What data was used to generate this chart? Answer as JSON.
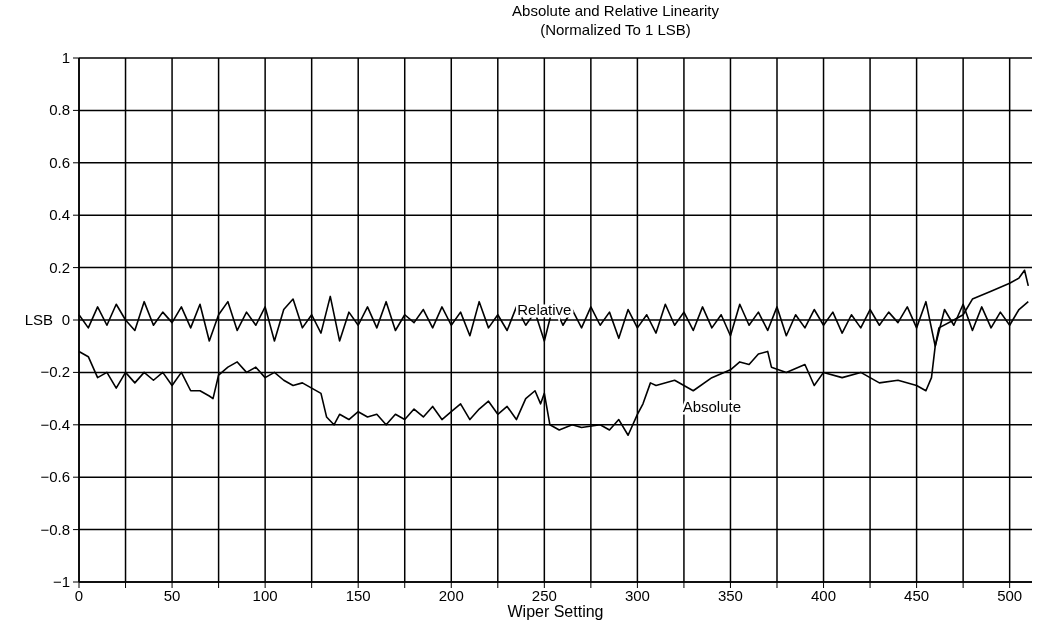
{
  "chart_data": {
    "type": "line",
    "title": "Absolute and Relative Linearity",
    "subtitle": "(Normalized To 1 LSB)",
    "xlabel": "Wiper Setting",
    "ylabel": "LSB",
    "xlim": [
      0,
      512
    ],
    "ylim": [
      -1,
      1
    ],
    "xticks": [
      0,
      {
        "value": 25,
        "label": null
      },
      50,
      {
        "value": 75,
        "label": null
      },
      100,
      {
        "value": 125,
        "label": null
      },
      150,
      {
        "value": 175,
        "label": null
      },
      200,
      {
        "value": 225,
        "label": null
      },
      250,
      {
        "value": 275,
        "label": null
      },
      300,
      {
        "value": 325,
        "label": null
      },
      350,
      {
        "value": 375,
        "label": null
      },
      400,
      {
        "value": 425,
        "label": null
      },
      450,
      {
        "value": 475,
        "label": null
      },
      500
    ],
    "yticks": [
      -1,
      -0.8,
      -0.6,
      -0.4,
      -0.2,
      0,
      0.2,
      0.4,
      0.6,
      0.8,
      1
    ],
    "grid": true,
    "line_style": "solid",
    "marker": "none",
    "series": [
      {
        "name": "Relative",
        "color": "#000000",
        "x": [
          0,
          5,
          10,
          15,
          20,
          25,
          30,
          35,
          40,
          45,
          50,
          55,
          60,
          65,
          70,
          75,
          80,
          85,
          90,
          95,
          100,
          105,
          110,
          115,
          120,
          125,
          130,
          135,
          140,
          145,
          150,
          155,
          160,
          165,
          170,
          175,
          180,
          185,
          190,
          195,
          200,
          205,
          210,
          215,
          220,
          225,
          230,
          235,
          240,
          245,
          250,
          255,
          260,
          265,
          270,
          275,
          280,
          285,
          290,
          295,
          300,
          305,
          310,
          315,
          320,
          325,
          330,
          335,
          340,
          345,
          350,
          355,
          360,
          365,
          370,
          375,
          380,
          385,
          390,
          395,
          400,
          405,
          410,
          415,
          420,
          425,
          430,
          435,
          440,
          445,
          450,
          455,
          460,
          465,
          470,
          475,
          480,
          485,
          490,
          495,
          500,
          505,
          510
        ],
        "values": [
          0.02,
          -0.03,
          0.05,
          -0.02,
          0.06,
          0.0,
          -0.04,
          0.07,
          -0.02,
          0.03,
          -0.01,
          0.05,
          -0.03,
          0.06,
          -0.08,
          0.02,
          0.07,
          -0.04,
          0.03,
          -0.02,
          0.05,
          -0.08,
          0.04,
          0.08,
          -0.03,
          0.02,
          -0.05,
          0.09,
          -0.08,
          0.03,
          -0.02,
          0.05,
          -0.03,
          0.07,
          -0.04,
          0.02,
          -0.01,
          0.04,
          -0.03,
          0.05,
          -0.02,
          0.03,
          -0.06,
          0.07,
          -0.03,
          0.02,
          -0.04,
          0.05,
          -0.02,
          0.03,
          -0.08,
          0.06,
          -0.02,
          0.04,
          -0.03,
          0.05,
          -0.02,
          0.03,
          -0.07,
          0.04,
          -0.03,
          0.02,
          -0.05,
          0.06,
          -0.02,
          0.03,
          -0.04,
          0.05,
          -0.03,
          0.02,
          -0.06,
          0.06,
          -0.02,
          0.03,
          -0.04,
          0.05,
          -0.06,
          0.02,
          -0.03,
          0.04,
          -0.02,
          0.03,
          -0.05,
          0.02,
          -0.03,
          0.04,
          -0.02,
          0.03,
          -0.01,
          0.05,
          -0.03,
          0.07,
          -0.1,
          0.04,
          -0.02,
          0.06,
          -0.04,
          0.05,
          -0.03,
          0.03,
          -0.02,
          0.04,
          0.07
        ]
      },
      {
        "name": "Absolute",
        "color": "#000000",
        "x": [
          0,
          5,
          10,
          15,
          20,
          25,
          30,
          35,
          40,
          45,
          50,
          55,
          60,
          65,
          70,
          72,
          75,
          80,
          85,
          90,
          95,
          100,
          105,
          110,
          115,
          120,
          125,
          130,
          133,
          137,
          140,
          145,
          150,
          155,
          160,
          165,
          170,
          175,
          180,
          185,
          190,
          195,
          200,
          205,
          210,
          215,
          220,
          225,
          230,
          235,
          240,
          245,
          248,
          250,
          253,
          258,
          265,
          270,
          280,
          285,
          290,
          295,
          300,
          303,
          307,
          310,
          320,
          330,
          340,
          350,
          355,
          360,
          365,
          370,
          372,
          380,
          390,
          395,
          400,
          410,
          420,
          430,
          440,
          450,
          455,
          458,
          460,
          462,
          470,
          475,
          480,
          490,
          500,
          505,
          508,
          510
        ],
        "values": [
          -0.12,
          -0.14,
          -0.22,
          -0.2,
          -0.26,
          -0.2,
          -0.24,
          -0.2,
          -0.23,
          -0.2,
          -0.25,
          -0.2,
          -0.27,
          -0.27,
          -0.29,
          -0.3,
          -0.21,
          -0.18,
          -0.16,
          -0.2,
          -0.18,
          -0.22,
          -0.2,
          -0.23,
          -0.25,
          -0.24,
          -0.26,
          -0.28,
          -0.37,
          -0.4,
          -0.36,
          -0.38,
          -0.35,
          -0.37,
          -0.36,
          -0.4,
          -0.36,
          -0.38,
          -0.34,
          -0.37,
          -0.33,
          -0.38,
          -0.35,
          -0.32,
          -0.38,
          -0.34,
          -0.31,
          -0.36,
          -0.33,
          -0.38,
          -0.3,
          -0.27,
          -0.32,
          -0.28,
          -0.4,
          -0.42,
          -0.4,
          -0.41,
          -0.4,
          -0.42,
          -0.38,
          -0.44,
          -0.36,
          -0.32,
          -0.24,
          -0.25,
          -0.23,
          -0.27,
          -0.22,
          -0.19,
          -0.16,
          -0.17,
          -0.13,
          -0.12,
          -0.18,
          -0.2,
          -0.17,
          -0.25,
          -0.2,
          -0.22,
          -0.2,
          -0.24,
          -0.23,
          -0.25,
          -0.27,
          -0.22,
          -0.1,
          -0.03,
          0.0,
          0.02,
          0.08,
          0.11,
          0.14,
          0.16,
          0.19,
          0.13
        ]
      }
    ]
  }
}
